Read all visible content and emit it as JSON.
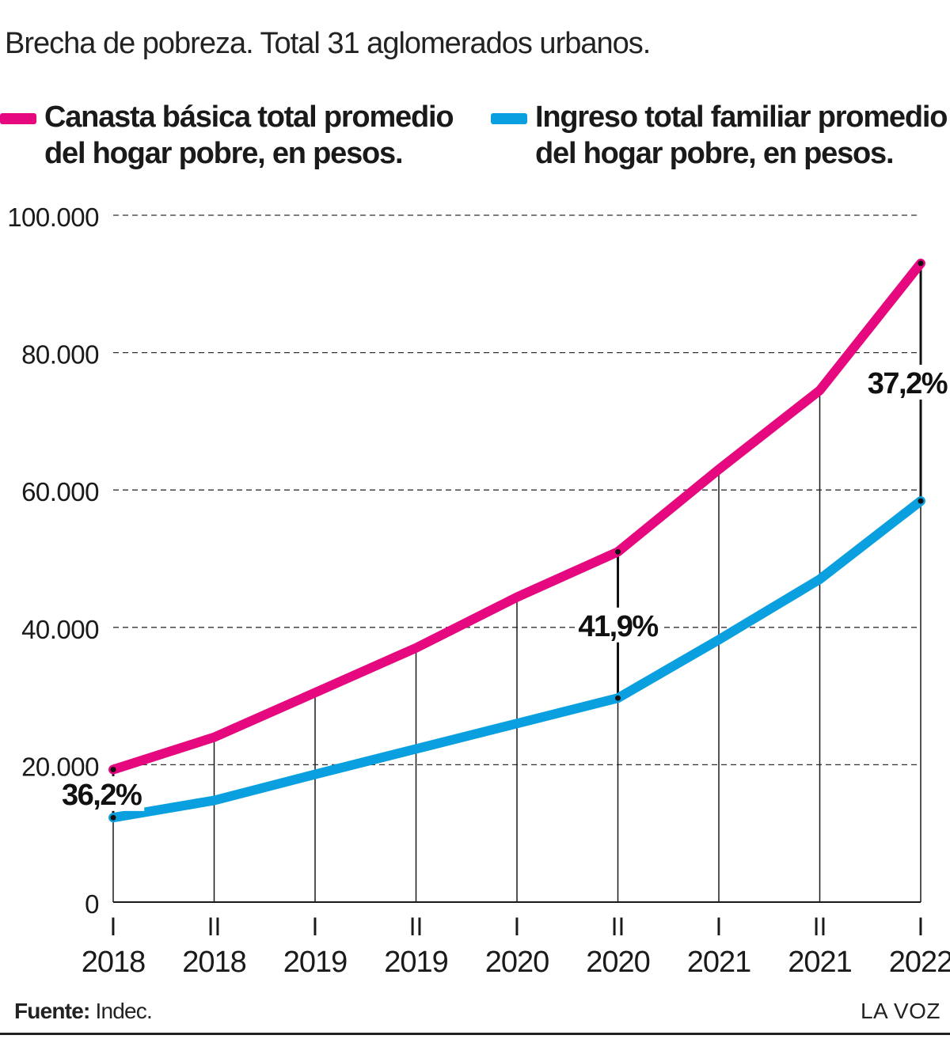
{
  "title": "Brecha de pobreza. Total 31 aglomerados urbanos.",
  "source": {
    "label": "Fuente:",
    "value": "Indec."
  },
  "brand": "LA VOZ",
  "colors": {
    "canasta": "#e5087e",
    "ingreso": "#0aa0e0",
    "text": "#1a1a1a"
  },
  "chart_data": {
    "type": "line",
    "title": "Brecha de pobreza. Total 31 aglomerados urbanos.",
    "xlabel": "",
    "ylabel": "",
    "ylim": [
      0,
      100000
    ],
    "yticks": [
      {
        "value": 0,
        "label": "0"
      },
      {
        "value": 20000,
        "label": "20.000"
      },
      {
        "value": 40000,
        "label": "40.000"
      },
      {
        "value": 60000,
        "label": "60.000"
      },
      {
        "value": 80000,
        "label": "80.000"
      },
      {
        "value": 100000,
        "label": "100.000"
      }
    ],
    "categories": [
      {
        "semester": "I",
        "year": "2018"
      },
      {
        "semester": "II",
        "year": "2018"
      },
      {
        "semester": "I",
        "year": "2019"
      },
      {
        "semester": "II",
        "year": "2019"
      },
      {
        "semester": "I",
        "year": "2020"
      },
      {
        "semester": "II",
        "year": "2020"
      },
      {
        "semester": "I",
        "year": "2021"
      },
      {
        "semester": "II",
        "year": "2021"
      },
      {
        "semester": "I",
        "year": "2022"
      }
    ],
    "series": [
      {
        "key": "canasta",
        "name": "Canasta básica total promedio del hogar pobre, en pesos.",
        "name_lines": [
          "Canasta básica total promedio",
          "del hogar pobre, en pesos."
        ],
        "color": "#e5087e",
        "values": [
          19300,
          24000,
          30500,
          37000,
          44400,
          51000,
          63000,
          74500,
          93000
        ]
      },
      {
        "key": "ingreso",
        "name": "Ingreso total familiar promedio del hogar pobre, en pesos.",
        "name_lines": [
          "Ingreso total familiar promedio",
          "del hogar pobre, en pesos."
        ],
        "color": "#0aa0e0",
        "values": [
          12300,
          14800,
          18600,
          22300,
          26000,
          29700,
          38200,
          47000,
          58400
        ]
      }
    ],
    "annotations": [
      {
        "index": 0,
        "label": "36,2%"
      },
      {
        "index": 5,
        "label": "41,9%"
      },
      {
        "index": 8,
        "label": "37,2%"
      }
    ],
    "grid": true,
    "legend": "top"
  }
}
